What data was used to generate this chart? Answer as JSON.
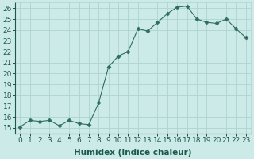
{
  "x": [
    0,
    1,
    2,
    3,
    4,
    5,
    6,
    7,
    8,
    9,
    10,
    11,
    12,
    13,
    14,
    15,
    16,
    17,
    18,
    19,
    20,
    21,
    22,
    23
  ],
  "y": [
    15.1,
    15.7,
    15.6,
    15.7,
    15.2,
    15.7,
    15.4,
    15.3,
    17.3,
    20.6,
    21.6,
    22.0,
    24.1,
    23.9,
    24.7,
    25.5,
    26.1,
    26.2,
    25.0,
    24.7,
    24.6,
    25.0,
    24.1,
    23.3
  ],
  "line_color": "#2d6e5e",
  "marker": "D",
  "marker_size": 2.5,
  "bg_color": "#cceae7",
  "grid_color": "#aed4d0",
  "xlabel": "Humidex (Indice chaleur)",
  "ylim": [
    14.5,
    26.5
  ],
  "yticks": [
    15,
    16,
    17,
    18,
    19,
    20,
    21,
    22,
    23,
    24,
    25,
    26
  ],
  "xticks": [
    0,
    1,
    2,
    3,
    4,
    5,
    6,
    7,
    8,
    9,
    10,
    11,
    12,
    13,
    14,
    15,
    16,
    17,
    18,
    19,
    20,
    21,
    22,
    23
  ],
  "xlabel_fontsize": 7.5,
  "tick_fontsize": 6.5,
  "tick_color": "#1a5a4a"
}
